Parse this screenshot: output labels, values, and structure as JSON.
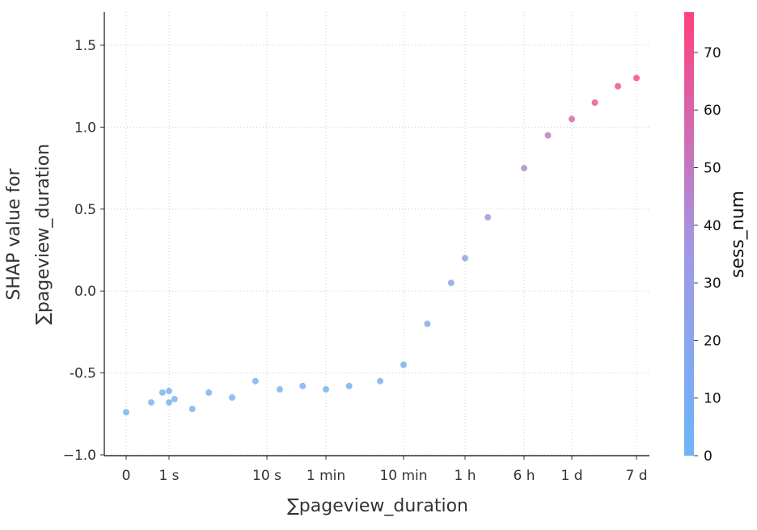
{
  "chart_data": {
    "type": "scatter",
    "title": "",
    "xlabel": "∑pageview_duration",
    "ylabel_line1": "SHAP value for",
    "ylabel_line2": "∑pageview_duration",
    "x_scale": "symlog (duration)",
    "x_ticks": [
      {
        "label": "0",
        "seconds": 0
      },
      {
        "label": "1 s",
        "seconds": 1
      },
      {
        "label": "10 s",
        "seconds": 10
      },
      {
        "label": "1 min",
        "seconds": 60
      },
      {
        "label": "10 min",
        "seconds": 600
      },
      {
        "label": "1 h",
        "seconds": 3600
      },
      {
        "label": "6 h",
        "seconds": 21600
      },
      {
        "label": "1 d",
        "seconds": 86400
      },
      {
        "label": "7 d",
        "seconds": 604800
      }
    ],
    "y_ticks": [
      "1.5",
      "1.0",
      "0.5",
      "0.0",
      "-0.5",
      "−1.0"
    ],
    "y_tick_values": [
      1.5,
      1.0,
      0.5,
      0.0,
      -0.5,
      -1.0
    ],
    "ylim": [
      -1.0,
      1.7
    ],
    "grid": "dotted",
    "colorbar": {
      "label": "sess_num",
      "range": [
        0,
        77
      ],
      "ticks": [
        "0",
        "10",
        "20",
        "30",
        "40",
        "50",
        "60",
        "70"
      ],
      "tick_values": [
        0,
        10,
        20,
        30,
        40,
        50,
        60,
        70
      ],
      "color_low": "#3b9cf5",
      "color_high": "#ff0052"
    },
    "series": [
      {
        "color_by": "sess_num",
        "points_note": "approximate representative sample of visible trend",
        "points": [
          {
            "x_s": 0,
            "y": -0.74,
            "c": 2
          },
          {
            "x_s": 0.5,
            "y": -0.68,
            "c": 3
          },
          {
            "x_s": 0.8,
            "y": -0.62,
            "c": 3
          },
          {
            "x_s": 1,
            "y": -0.61,
            "c": 4
          },
          {
            "x_s": 1,
            "y": -0.68,
            "c": 3
          },
          {
            "x_s": 1.2,
            "y": -0.66,
            "c": 4
          },
          {
            "x_s": 2,
            "y": -0.72,
            "c": 4
          },
          {
            "x_s": 3,
            "y": -0.62,
            "c": 5
          },
          {
            "x_s": 5,
            "y": -0.65,
            "c": 4
          },
          {
            "x_s": 8,
            "y": -0.55,
            "c": 5
          },
          {
            "x_s": 15,
            "y": -0.6,
            "c": 4
          },
          {
            "x_s": 30,
            "y": -0.58,
            "c": 5
          },
          {
            "x_s": 60,
            "y": -0.6,
            "c": 5
          },
          {
            "x_s": 120,
            "y": -0.58,
            "c": 6
          },
          {
            "x_s": 300,
            "y": -0.55,
            "c": 6
          },
          {
            "x_s": 600,
            "y": -0.45,
            "c": 6
          },
          {
            "x_s": 1200,
            "y": -0.2,
            "c": 8
          },
          {
            "x_s": 2400,
            "y": 0.05,
            "c": 12
          },
          {
            "x_s": 3600,
            "y": 0.2,
            "c": 15
          },
          {
            "x_s": 7200,
            "y": 0.45,
            "c": 20
          },
          {
            "x_s": 21600,
            "y": 0.75,
            "c": 30
          },
          {
            "x_s": 43200,
            "y": 0.95,
            "c": 40
          },
          {
            "x_s": 86400,
            "y": 1.05,
            "c": 55
          },
          {
            "x_s": 172800,
            "y": 1.15,
            "c": 65
          },
          {
            "x_s": 345600,
            "y": 1.25,
            "c": 72
          },
          {
            "x_s": 604800,
            "y": 1.3,
            "c": 75
          }
        ]
      }
    ]
  }
}
